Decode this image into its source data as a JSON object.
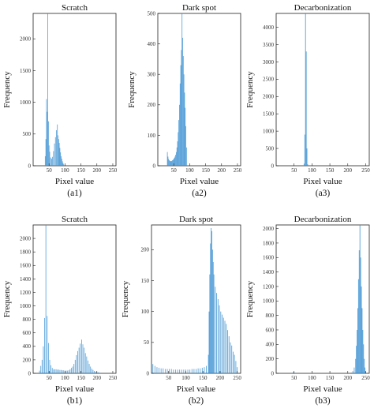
{
  "chart_data": [
    {
      "id": "a1",
      "type": "bar",
      "title": "Scratch",
      "xlabel": "Pixel value",
      "ylabel": "Frequency",
      "caption": "(a1)",
      "xlim": [
        0,
        260
      ],
      "ylim": [
        0,
        2400
      ],
      "xticks": [
        50,
        100,
        150,
        200,
        250
      ],
      "yticks": [
        0,
        500,
        1000,
        1500,
        2000
      ],
      "color": "#3a8fd1",
      "bins": {
        "x": [
          38,
          40,
          42,
          44,
          46,
          48,
          50,
          52,
          55,
          58,
          61,
          64,
          67,
          70,
          73,
          76,
          78,
          80,
          82,
          84,
          86,
          88,
          90,
          92,
          94,
          96
        ],
        "y": [
          150,
          420,
          1050,
          850,
          2400,
          700,
          320,
          220,
          130,
          110,
          140,
          230,
          350,
          450,
          560,
          650,
          480,
          420,
          360,
          280,
          210,
          150,
          110,
          70,
          40,
          20
        ]
      }
    },
    {
      "id": "a2",
      "type": "bar",
      "title": "Dark spot",
      "xlabel": "Pixel value",
      "ylabel": "Frequency",
      "caption": "(a2)",
      "xlim": [
        0,
        260
      ],
      "ylim": [
        0,
        500
      ],
      "xticks": [
        50,
        100,
        150,
        200,
        250
      ],
      "yticks": [
        0,
        100,
        200,
        300,
        400,
        500
      ],
      "color": "#3a8fd1",
      "bins": {
        "x": [
          30,
          32,
          34,
          36,
          38,
          40,
          42,
          44,
          46,
          48,
          50,
          52,
          54,
          56,
          58,
          60,
          62,
          64,
          66,
          68,
          70,
          72,
          74,
          76,
          78,
          80,
          82,
          84,
          86,
          88,
          90
        ],
        "y": [
          45,
          30,
          22,
          18,
          16,
          15,
          15,
          16,
          18,
          20,
          22,
          26,
          30,
          36,
          45,
          60,
          80,
          110,
          150,
          200,
          270,
          330,
          380,
          500,
          420,
          360,
          300,
          240,
          190,
          130,
          60
        ]
      }
    },
    {
      "id": "a3",
      "type": "bar",
      "title": "Decarbonization",
      "xlabel": "Pixel value",
      "ylabel": "Frequency",
      "caption": "(a3)",
      "xlim": [
        0,
        260
      ],
      "ylim": [
        0,
        4400
      ],
      "xticks": [
        50,
        100,
        150,
        200,
        250
      ],
      "yticks": [
        0,
        500,
        1000,
        1500,
        2000,
        2500,
        3000,
        3500,
        4000
      ],
      "color": "#3a8fd1",
      "bins": {
        "x": [
          78,
          80,
          82,
          84,
          86,
          88
        ],
        "y": [
          60,
          900,
          4400,
          3300,
          500,
          40
        ]
      }
    },
    {
      "id": "b1",
      "type": "bar",
      "title": "Scratch",
      "xlabel": "Pixel value",
      "ylabel": "Frequency",
      "caption": "(b1)",
      "xlim": [
        0,
        260
      ],
      "ylim": [
        0,
        2200
      ],
      "xticks": [
        50,
        100,
        150,
        200,
        250
      ],
      "yticks": [
        0,
        200,
        400,
        600,
        800,
        1000,
        1200,
        1400,
        1600,
        1800,
        2000
      ],
      "color": "#3a8fd1",
      "bins": {
        "x": [
          20,
          24,
          28,
          32,
          36,
          40,
          44,
          48,
          52,
          56,
          60,
          64,
          68,
          72,
          76,
          80,
          84,
          88,
          92,
          96,
          100,
          104,
          108,
          112,
          116,
          120,
          124,
          128,
          132,
          136,
          140,
          144,
          148,
          152,
          156,
          160,
          164,
          168,
          172,
          176,
          180,
          184,
          188,
          192,
          196,
          200,
          204,
          208
        ],
        "y": [
          40,
          110,
          200,
          400,
          820,
          2200,
          850,
          450,
          200,
          120,
          80,
          60,
          60,
          60,
          55,
          55,
          50,
          50,
          45,
          45,
          40,
          40,
          40,
          45,
          60,
          80,
          100,
          140,
          200,
          270,
          330,
          380,
          440,
          500,
          430,
          380,
          300,
          250,
          190,
          140,
          100,
          70,
          50,
          35,
          25,
          20,
          15,
          10
        ]
      }
    },
    {
      "id": "b2",
      "type": "bar",
      "title": "Dark spot",
      "xlabel": "Pixel value",
      "ylabel": "Frequency",
      "caption": "(b2)",
      "xlim": [
        0,
        260
      ],
      "ylim": [
        0,
        240
      ],
      "xticks": [
        50,
        100,
        150,
        200,
        250
      ],
      "yticks": [
        0,
        50,
        100,
        150,
        200
      ],
      "color": "#3a8fd1",
      "bins": {
        "x": [
          4,
          10,
          16,
          22,
          28,
          34,
          40,
          46,
          52,
          58,
          64,
          70,
          76,
          82,
          88,
          94,
          100,
          106,
          112,
          118,
          124,
          130,
          136,
          142,
          148,
          154,
          160,
          166,
          168,
          170,
          172,
          174,
          176,
          178,
          180,
          182,
          186,
          190,
          194,
          198,
          202,
          206,
          210,
          214,
          218,
          222,
          226,
          230,
          234,
          238,
          242,
          246,
          250
        ],
        "y": [
          15,
          12,
          10,
          9,
          8,
          8,
          7,
          7,
          7,
          7,
          6,
          6,
          6,
          6,
          6,
          6,
          6,
          6,
          6,
          7,
          7,
          7,
          8,
          8,
          9,
          10,
          12,
          30,
          100,
          160,
          210,
          235,
          230,
          200,
          180,
          160,
          140,
          130,
          120,
          110,
          100,
          95,
          90,
          85,
          80,
          70,
          60,
          50,
          45,
          35,
          30,
          20,
          10
        ]
      }
    },
    {
      "id": "b3",
      "type": "bar",
      "title": "Decarbonization",
      "xlabel": "Pixel value",
      "ylabel": "Frequency",
      "caption": "(b3)",
      "xlim": [
        0,
        260
      ],
      "ylim": [
        0,
        2050
      ],
      "xticks": [
        50,
        100,
        150,
        200,
        250
      ],
      "yticks": [
        0,
        200,
        400,
        600,
        800,
        1000,
        1200,
        1400,
        1600,
        1800,
        2000
      ],
      "color": "#3a8fd1",
      "bins": {
        "x": [
          48,
          50,
          210,
          214,
          218,
          222,
          224,
          226,
          228,
          230,
          232,
          234,
          236,
          238,
          240,
          242,
          244,
          246,
          248,
          250
        ],
        "y": [
          15,
          10,
          10,
          30,
          80,
          200,
          380,
          600,
          900,
          1300,
          1700,
          2050,
          1600,
          1200,
          900,
          600,
          400,
          200,
          80,
          20
        ]
      }
    }
  ]
}
